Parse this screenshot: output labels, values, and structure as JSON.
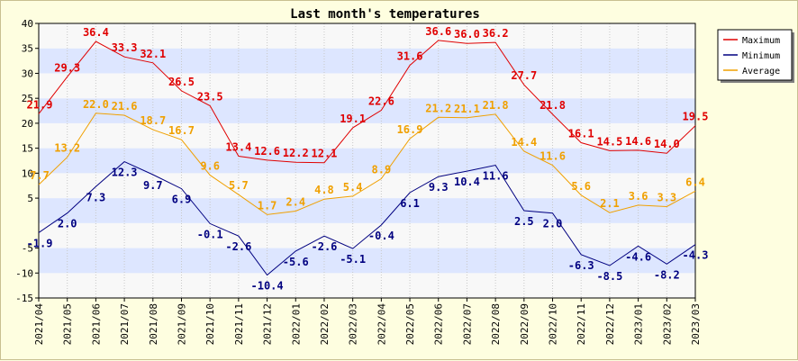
{
  "chart_data": {
    "type": "line",
    "title": "Last month's temperatures",
    "categories": [
      "2021/04",
      "2021/05",
      "2021/06",
      "2021/07",
      "2021/08",
      "2021/09",
      "2021/10",
      "2021/11",
      "2021/12",
      "2022/01",
      "2022/02",
      "2022/03",
      "2022/04",
      "2022/05",
      "2022/06",
      "2022/07",
      "2022/08",
      "2022/09",
      "2022/10",
      "2022/11",
      "2022/12",
      "2023/01",
      "2023/02",
      "2023/03"
    ],
    "ylim": [
      -15,
      40
    ],
    "yticks": [
      -15,
      -10,
      -5,
      5,
      10,
      15,
      20,
      25,
      30,
      35,
      40
    ],
    "grid": "horizontal bands",
    "legend_position": "top-right",
    "series": [
      {
        "name": "Maximum",
        "color": "#e00000",
        "values": [
          21.9,
          29.3,
          36.4,
          33.3,
          32.1,
          26.5,
          23.5,
          13.4,
          12.6,
          12.2,
          12.1,
          19.1,
          22.6,
          31.6,
          36.6,
          36.0,
          36.2,
          27.7,
          21.8,
          16.1,
          14.5,
          14.6,
          14.0,
          19.5
        ]
      },
      {
        "name": "Minimum",
        "color": "#000080",
        "values": [
          -1.9,
          2.0,
          7.3,
          12.3,
          9.7,
          6.9,
          -0.1,
          -2.6,
          -10.4,
          -5.6,
          -2.6,
          -5.1,
          -0.4,
          6.1,
          9.3,
          10.4,
          11.6,
          2.5,
          2.0,
          -6.3,
          -8.5,
          -4.6,
          -8.2,
          -4.3
        ]
      },
      {
        "name": "Average",
        "color": "#f0a000",
        "values": [
          7.7,
          13.2,
          22.0,
          21.6,
          18.7,
          16.7,
          9.6,
          5.7,
          1.7,
          2.4,
          4.8,
          5.4,
          8.9,
          16.9,
          21.2,
          21.1,
          21.8,
          14.4,
          11.6,
          5.6,
          2.1,
          3.6,
          3.3,
          6.4
        ]
      }
    ]
  }
}
